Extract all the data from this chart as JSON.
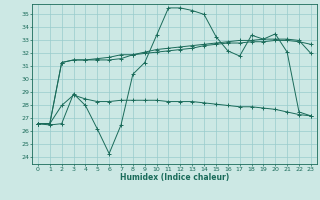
{
  "title": "",
  "xlabel": "Humidex (Indice chaleur)",
  "ylabel": "",
  "bg_color": "#cce8e4",
  "grid_color": "#99cccc",
  "line_color": "#1a6b5a",
  "xlim": [
    -0.5,
    23.5
  ],
  "ylim": [
    23.5,
    35.8
  ],
  "yticks": [
    24,
    25,
    26,
    27,
    28,
    29,
    30,
    31,
    32,
    33,
    34,
    35
  ],
  "xticks": [
    0,
    1,
    2,
    3,
    4,
    5,
    6,
    7,
    8,
    9,
    10,
    11,
    12,
    13,
    14,
    15,
    16,
    17,
    18,
    19,
    20,
    21,
    22,
    23
  ],
  "series": [
    [
      26.6,
      26.5,
      26.6,
      28.9,
      28.0,
      26.2,
      24.3,
      26.5,
      30.4,
      31.3,
      33.4,
      35.5,
      35.5,
      35.3,
      35.0,
      33.3,
      32.2,
      31.8,
      33.4,
      33.1,
      33.5,
      32.1,
      27.5,
      27.2
    ],
    [
      26.6,
      26.6,
      31.3,
      31.5,
      31.5,
      31.6,
      31.7,
      31.9,
      31.9,
      32.1,
      32.3,
      32.4,
      32.5,
      32.6,
      32.7,
      32.8,
      32.9,
      33.0,
      33.0,
      33.1,
      33.1,
      33.1,
      33.0,
      32.0
    ],
    [
      26.6,
      26.6,
      31.3,
      31.5,
      31.5,
      31.5,
      31.5,
      31.6,
      31.9,
      32.0,
      32.1,
      32.2,
      32.3,
      32.4,
      32.6,
      32.7,
      32.8,
      32.8,
      32.9,
      32.9,
      33.0,
      33.0,
      32.9,
      32.7
    ],
    [
      26.6,
      26.6,
      28.0,
      28.8,
      28.5,
      28.3,
      28.3,
      28.4,
      28.4,
      28.4,
      28.4,
      28.3,
      28.3,
      28.3,
      28.2,
      28.1,
      28.0,
      27.9,
      27.9,
      27.8,
      27.7,
      27.5,
      27.3,
      27.2
    ]
  ]
}
